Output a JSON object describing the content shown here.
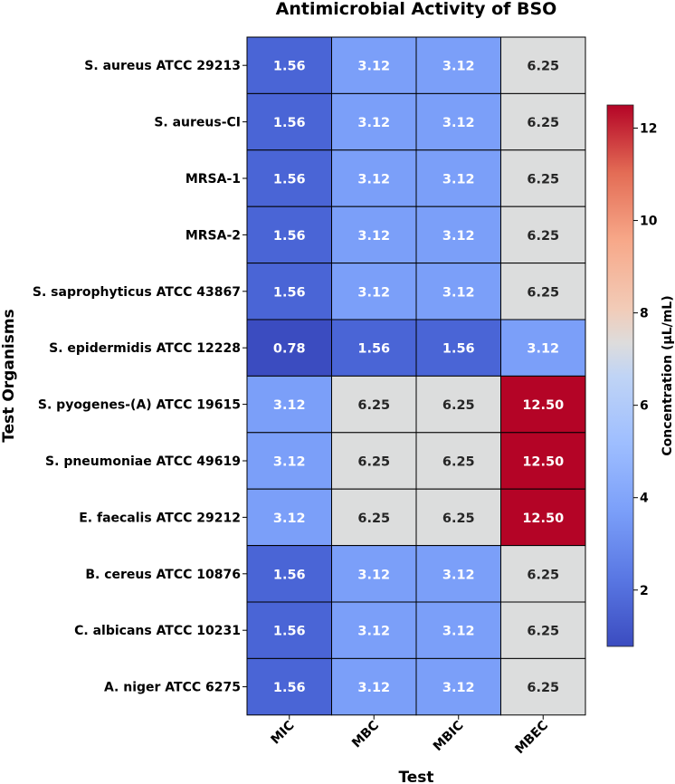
{
  "chart_data": {
    "type": "heatmap",
    "title": "Antimicrobial Activity of BSO",
    "xlabel": "Test",
    "ylabel": "Test Organisms",
    "columns": [
      "MIC",
      "MBC",
      "MBIC",
      "MBEC"
    ],
    "rows": [
      "S.  aureus ATCC 29213",
      "S.  aureus-CI",
      "MRSA-1",
      "MRSA-2",
      "S.  saprophyticus ATCC 43867",
      "S.  epidermidis ATCC 12228",
      "S.  pyogenes-(A) ATCC 19615",
      "S.  pneumoniae ATCC 49619",
      "E.  faecalis ATCC 29212",
      "B.  cereus ATCC 10876",
      "C.  albicans ATCC 10231",
      "A.  niger ATCC 6275"
    ],
    "values": [
      [
        1.56,
        3.12,
        3.12,
        6.25
      ],
      [
        1.56,
        3.12,
        3.12,
        6.25
      ],
      [
        1.56,
        3.12,
        3.12,
        6.25
      ],
      [
        1.56,
        3.12,
        3.12,
        6.25
      ],
      [
        1.56,
        3.12,
        3.12,
        6.25
      ],
      [
        0.78,
        1.56,
        1.56,
        3.12
      ],
      [
        3.12,
        6.25,
        6.25,
        12.5
      ],
      [
        3.12,
        6.25,
        6.25,
        12.5
      ],
      [
        3.12,
        6.25,
        6.25,
        12.5
      ],
      [
        1.56,
        3.12,
        3.12,
        6.25
      ],
      [
        1.56,
        3.12,
        3.12,
        6.25
      ],
      [
        1.56,
        3.12,
        3.12,
        6.25
      ]
    ],
    "value_format": "0.00",
    "colormap": "coolwarm",
    "vmin": 0.78,
    "vmax": 12.5,
    "colorbar": {
      "label": "Concentration (µL/mL)",
      "ticks": [
        2,
        4,
        6,
        8,
        10,
        12
      ]
    },
    "cell_colors": {
      "0.78": "#3b4cc0",
      "1.56": "#4a65d6",
      "3.12": "#7b9ff9",
      "6.25": "#dcdddd",
      "12.50": "#b40426"
    },
    "text_colors": {
      "light": "#ffffff",
      "dark": "#262626"
    }
  }
}
